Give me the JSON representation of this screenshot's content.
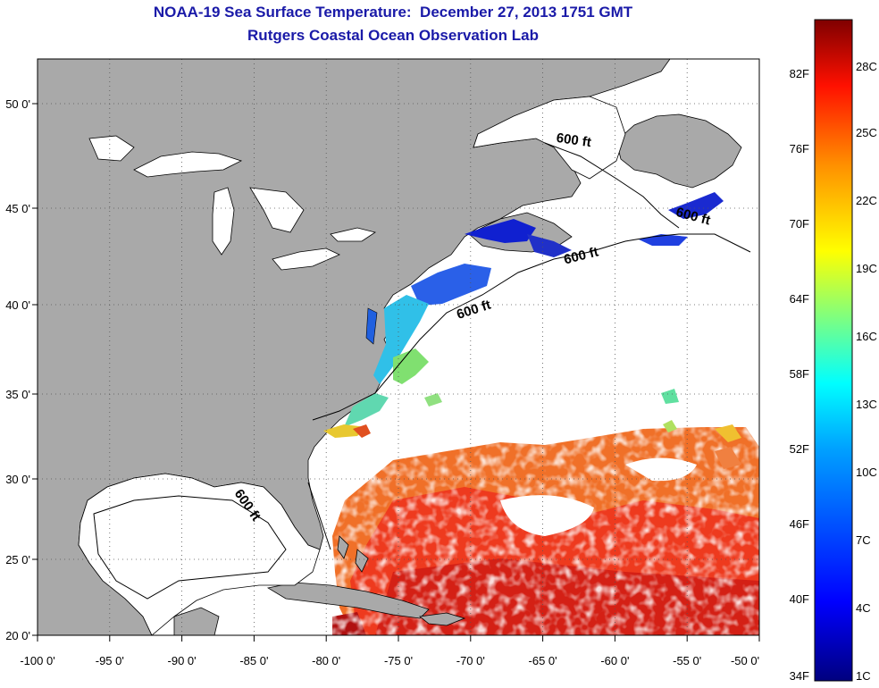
{
  "title": {
    "line1": "NOAA-19 Sea Surface Temperature:  December 27, 2013 1751 GMT",
    "line2": "Rutgers Coastal Ocean Observation Lab"
  },
  "map": {
    "lon_range": [
      -100,
      -50
    ],
    "lat_range": [
      20,
      52
    ],
    "lon_ticks": [
      "-100 0'",
      "-95 0'",
      "-90 0'",
      "-85 0'",
      "-80 0'",
      "-75 0'",
      "-70 0'",
      "-65 0'",
      "-60 0'",
      "-55 0'",
      "-50 0'"
    ],
    "lat_ticks": [
      "50 0'",
      "45 0'",
      "40 0'",
      "35 0'",
      "30 0'",
      "25 0'",
      "20 0'"
    ],
    "grid": "dotted",
    "land_color": "#a9a9a9",
    "no_data_color": "#ffffff",
    "contour_label": "600 ft"
  },
  "colorbar": {
    "f_labels": [
      "82F",
      "76F",
      "70F",
      "64F",
      "58F",
      "52F",
      "46F",
      "40F",
      "34F"
    ],
    "c_labels": [
      "28C",
      "25C",
      "22C",
      "19C",
      "16C",
      "13C",
      "10C",
      "7C",
      "4C",
      "1C"
    ],
    "colors": [
      "#7f0000",
      "#ff0000",
      "#ff7f00",
      "#ffff00",
      "#7fff7f",
      "#00ffff",
      "#007fff",
      "#0000ff",
      "#00007f"
    ]
  }
}
